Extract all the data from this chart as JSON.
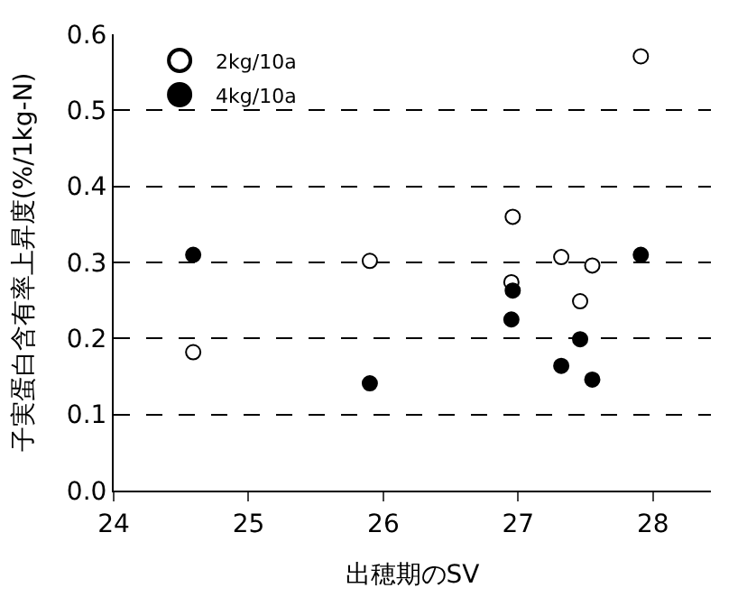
{
  "chart_data": {
    "type": "scatter",
    "xlabel": "出穂期のSV",
    "ylabel": "子実蛋白含有率上昇度(%/1kg-N)",
    "xlim": [
      24,
      28.43
    ],
    "xticks": [
      24,
      25,
      26,
      27,
      28
    ],
    "ylim": [
      0,
      0.6
    ],
    "yticks": [
      {
        "value": 0,
        "label": "0.0"
      },
      0.1,
      0.2,
      0.3,
      0.4,
      0.5,
      0.6
    ],
    "grid": "y",
    "legend": "top left",
    "marker": "circle",
    "series": [
      {
        "name": "2kg/10a",
        "color": "#ffffff",
        "x": [
          24.59,
          25.9,
          26.96,
          26.95,
          27.32,
          27.55,
          27.46,
          27.91
        ],
        "values": [
          0.182,
          0.302,
          0.36,
          0.274,
          0.307,
          0.296,
          0.249,
          0.571
        ]
      },
      {
        "name": "4kg/10a",
        "color": "#000000",
        "x": [
          24.59,
          25.9,
          26.96,
          26.95,
          27.46,
          27.32,
          27.55,
          27.91
        ],
        "values": [
          0.31,
          0.141,
          0.263,
          0.225,
          0.199,
          0.164,
          0.146,
          0.31
        ]
      }
    ]
  }
}
